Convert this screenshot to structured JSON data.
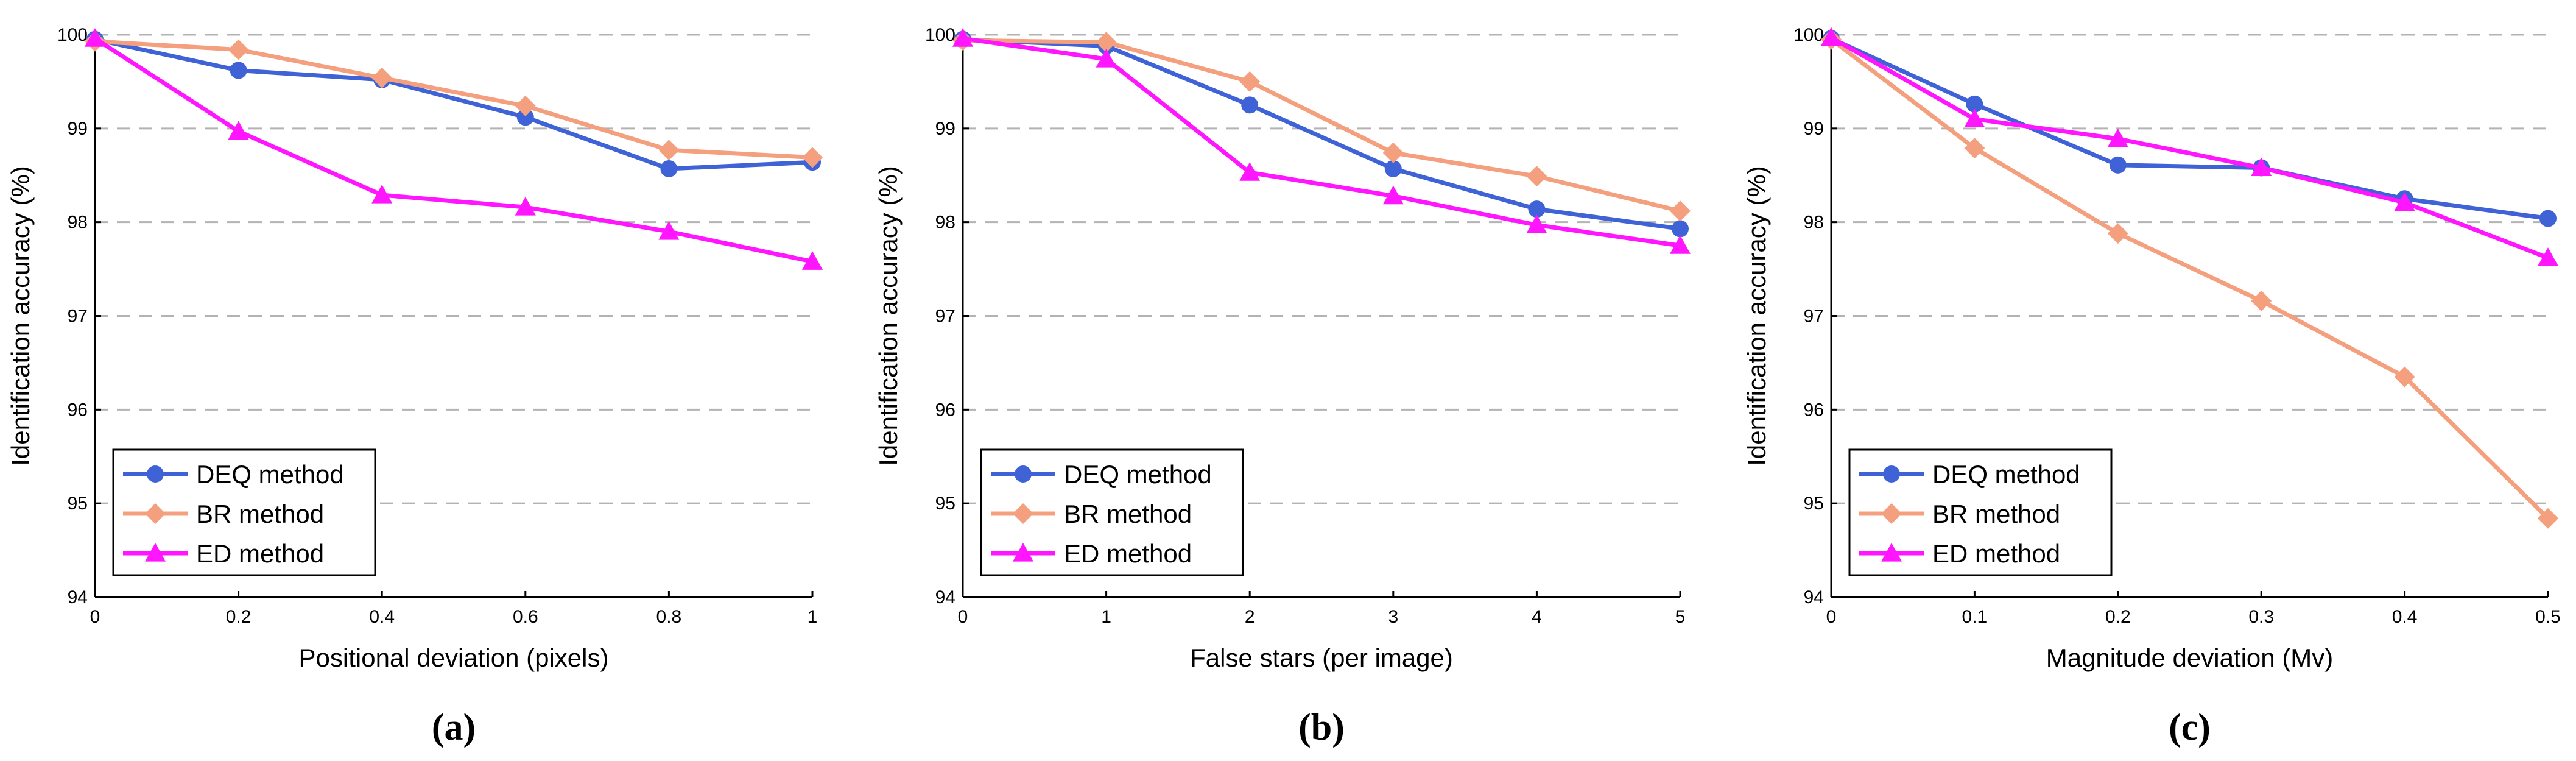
{
  "colors": {
    "DEQ": "#3f63d6",
    "BR": "#f4a07e",
    "ED": "#ff16ff",
    "grid": "#b3b3b3"
  },
  "chart_data": [
    {
      "type": "line",
      "panel_label": "(a)",
      "xlabel": "Positional deviation (pixels)",
      "ylabel": "Identification accuracy (%)",
      "x": [
        0,
        0.2,
        0.4,
        0.6,
        0.8,
        1
      ],
      "x_tick_labels": [
        "0",
        "0.2",
        "0.4",
        "0.6",
        "0.8",
        "1"
      ],
      "xlim": [
        0,
        1
      ],
      "ylim": [
        94,
        100
      ],
      "y_ticks": [
        94,
        95,
        96,
        97,
        98,
        99,
        100
      ],
      "legend": "bottom-left",
      "series": [
        {
          "name": "DEQ method",
          "key": "DEQ",
          "marker": "circle",
          "values": [
            99.95,
            99.62,
            99.52,
            99.12,
            98.57,
            98.64
          ]
        },
        {
          "name": "BR method",
          "key": "BR",
          "marker": "diamond",
          "values": [
            99.93,
            99.84,
            99.54,
            99.24,
            98.77,
            98.69
          ]
        },
        {
          "name": "ED method",
          "key": "ED",
          "marker": "triangle",
          "values": [
            99.96,
            98.97,
            98.29,
            98.16,
            97.9,
            97.58
          ]
        }
      ]
    },
    {
      "type": "line",
      "panel_label": "(b)",
      "xlabel": "False stars (per image)",
      "ylabel": "Identification accuracy (%)",
      "x": [
        0,
        1,
        2,
        3,
        4,
        5
      ],
      "x_tick_labels": [
        "0",
        "1",
        "2",
        "3",
        "4",
        "5"
      ],
      "xlim": [
        0,
        5
      ],
      "ylim": [
        94,
        100
      ],
      "y_ticks": [
        94,
        95,
        96,
        97,
        98,
        99,
        100
      ],
      "legend": "bottom-left",
      "series": [
        {
          "name": "DEQ method",
          "key": "DEQ",
          "marker": "circle",
          "values": [
            99.95,
            99.88,
            99.25,
            98.57,
            98.14,
            97.93
          ]
        },
        {
          "name": "BR method",
          "key": "BR",
          "marker": "diamond",
          "values": [
            99.94,
            99.92,
            99.5,
            98.74,
            98.49,
            98.12
          ]
        },
        {
          "name": "ED method",
          "key": "ED",
          "marker": "triangle",
          "values": [
            99.96,
            99.74,
            98.53,
            98.28,
            97.97,
            97.75
          ]
        }
      ]
    },
    {
      "type": "line",
      "panel_label": "(c)",
      "xlabel": "Magnitude deviation (Mv)",
      "ylabel": "Identification accuracy (%)",
      "x": [
        0,
        0.1,
        0.2,
        0.3,
        0.4,
        0.5
      ],
      "x_tick_labels": [
        "0",
        "0.1",
        "0.2",
        "0.3",
        "0.4",
        "0.5"
      ],
      "xlim": [
        0,
        0.5
      ],
      "ylim": [
        94,
        100
      ],
      "y_ticks": [
        94,
        95,
        96,
        97,
        98,
        99,
        100
      ],
      "legend": "bottom-left",
      "series": [
        {
          "name": "DEQ method",
          "key": "DEQ",
          "marker": "circle",
          "values": [
            99.96,
            99.26,
            98.61,
            98.58,
            98.25,
            98.04
          ]
        },
        {
          "name": "BR method",
          "key": "BR",
          "marker": "diamond",
          "values": [
            99.95,
            98.79,
            97.88,
            97.16,
            96.35,
            94.84
          ]
        },
        {
          "name": "ED method",
          "key": "ED",
          "marker": "triangle",
          "values": [
            99.97,
            99.1,
            98.89,
            98.58,
            98.21,
            97.62
          ]
        }
      ]
    }
  ]
}
